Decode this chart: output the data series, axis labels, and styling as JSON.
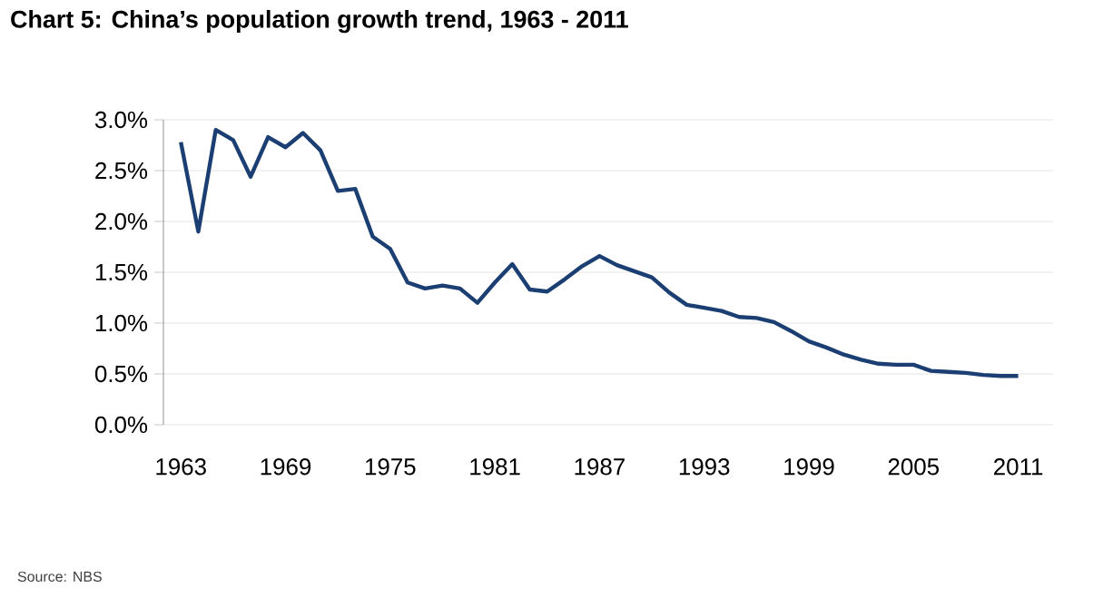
{
  "chart_data": {
    "type": "line",
    "title": "Chart 5: China’s population growth trend, 1963 - 2011",
    "x": [
      1963,
      1964,
      1965,
      1966,
      1967,
      1968,
      1969,
      1970,
      1971,
      1972,
      1973,
      1974,
      1975,
      1976,
      1977,
      1978,
      1979,
      1980,
      1981,
      1982,
      1983,
      1984,
      1985,
      1986,
      1987,
      1988,
      1989,
      1990,
      1991,
      1992,
      1993,
      1994,
      1995,
      1996,
      1997,
      1998,
      1999,
      2000,
      2001,
      2002,
      2003,
      2004,
      2005,
      2006,
      2007,
      2008,
      2009,
      2010,
      2011
    ],
    "series": [
      {
        "color": "#1b3f73",
        "values": [
          2.78,
          1.9,
          2.9,
          2.8,
          2.44,
          2.83,
          2.73,
          2.87,
          2.7,
          2.3,
          2.32,
          1.85,
          1.73,
          1.4,
          1.34,
          1.37,
          1.34,
          1.2,
          1.4,
          1.58,
          1.33,
          1.31,
          1.43,
          1.56,
          1.66,
          1.57,
          1.51,
          1.45,
          1.3,
          1.18,
          1.15,
          1.12,
          1.06,
          1.05,
          1.01,
          0.92,
          0.82,
          0.76,
          0.69,
          0.64,
          0.6,
          0.59,
          0.59,
          0.53,
          0.52,
          0.51,
          0.49,
          0.48,
          0.48
        ]
      }
    ],
    "xlim": [
      1962,
      2013
    ],
    "xticks": [
      1963,
      1969,
      1975,
      1981,
      1987,
      1993,
      1999,
      2005,
      2011
    ],
    "ylim": [
      0,
      3
    ],
    "yticks": [
      {
        "value": 0,
        "label": "0.0%"
      },
      {
        "value": 0.5,
        "label": "0.5%"
      },
      {
        "value": 1,
        "label": "1.0%"
      },
      {
        "value": 1.5,
        "label": "1.5%"
      },
      {
        "value": 2,
        "label": "2.0%"
      },
      {
        "value": 2.5,
        "label": "2.5%"
      },
      {
        "value": 3,
        "label": "3.0%"
      }
    ],
    "grid": "y",
    "marker": "none",
    "line_style": "solid",
    "annotations": [
      "Source: NBS"
    ]
  }
}
